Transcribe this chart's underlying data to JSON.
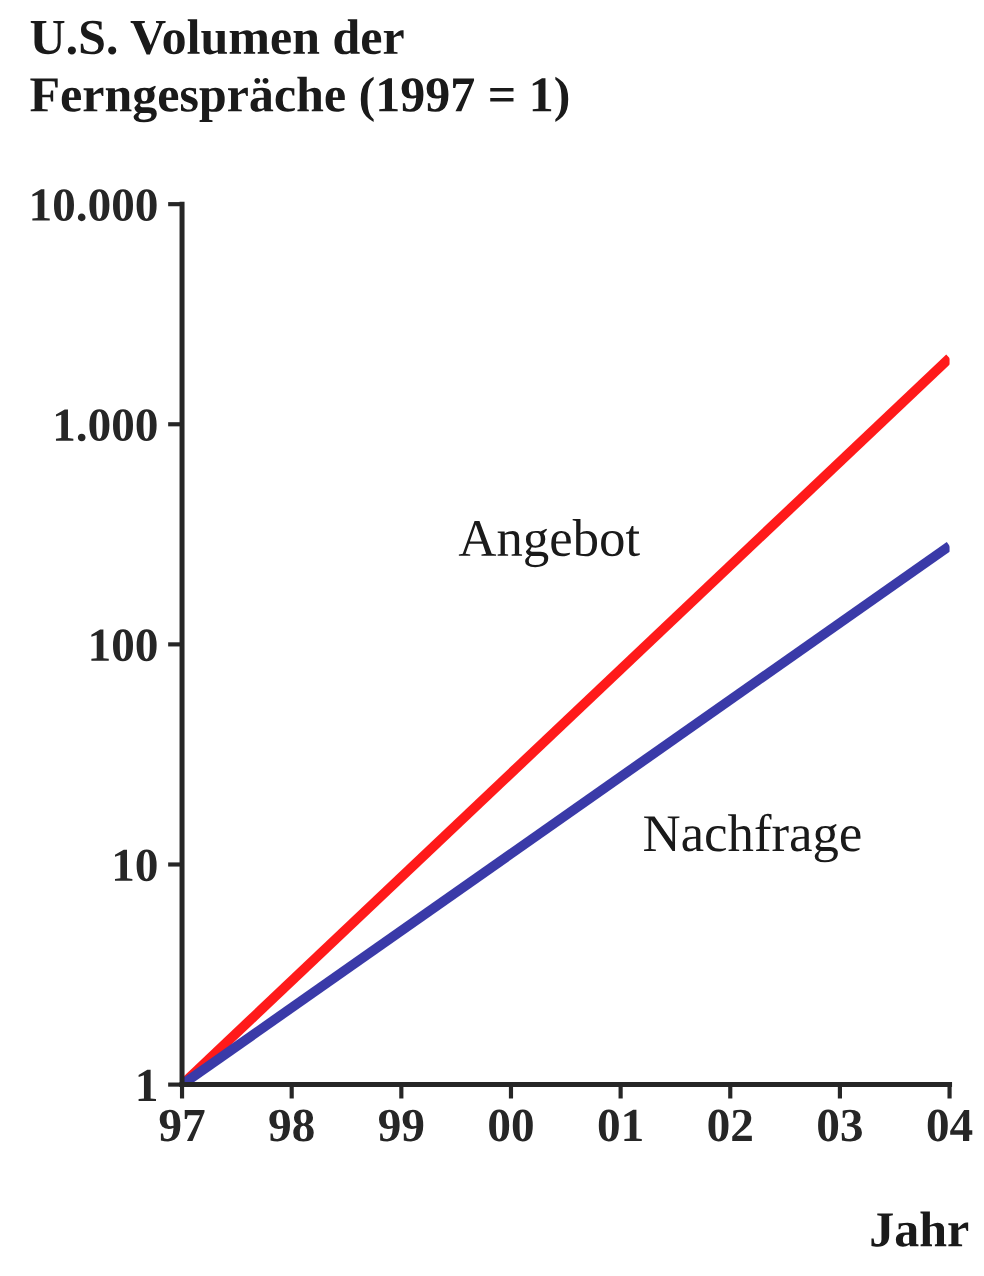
{
  "chart_data": {
    "type": "line",
    "title": "U.S. Volumen der\nFerngespräche (1997 = 1)",
    "xlabel": "Jahr",
    "x": [
      1997,
      2004
    ],
    "series": [
      {
        "name": "Angebot",
        "color": "#ff1a1a",
        "values": [
          1,
          2000
        ]
      },
      {
        "name": "Nachfrage",
        "color": "#3a3aa8",
        "values": [
          1,
          280
        ]
      }
    ],
    "log": "y",
    "ylim": [
      1,
      10000
    ],
    "yticks": [
      1,
      10,
      100,
      {
        "value": 1000,
        "label": "1.000"
      },
      {
        "value": 10000,
        "label": "10.000"
      }
    ],
    "xlim": [
      1997,
      2004
    ],
    "xticks": [
      {
        "value": 1997,
        "label": "97"
      },
      {
        "value": 1998,
        "label": "98"
      },
      {
        "value": 1999,
        "label": "99"
      },
      {
        "value": 2000,
        "label": "00"
      },
      {
        "value": 2001,
        "label": "01"
      },
      {
        "value": 2002,
        "label": "02"
      },
      {
        "value": 2003,
        "label": "03"
      },
      {
        "value": 2004,
        "label": "04"
      }
    ],
    "grid": false,
    "legend": false,
    "marker": "none",
    "line_style": "solid"
  }
}
